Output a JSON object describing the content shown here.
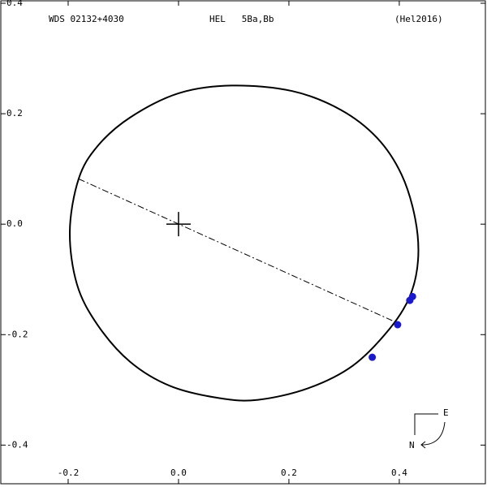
{
  "chart_data": {
    "type": "orbit",
    "header": [
      "WDS 02132+4030",
      "HEL   5Ba,Bb",
      "(Hel2016)"
    ],
    "compass": [
      "E",
      "N"
    ],
    "xlim": [
      -0.3235,
      0.556
    ],
    "ylim": [
      -0.47,
      0.4
    ],
    "xticks": [
      -0.2,
      {
        "value": 0,
        "label": "0.0"
      },
      0.2,
      0.4
    ],
    "yticks": [
      -0.4,
      -0.2,
      {
        "value": 0,
        "label": "0.0"
      },
      0.2,
      0.4
    ],
    "orbit": {
      "color": "#000000",
      "x": [
        -0.181,
        -0.197,
        -0.184,
        -0.147,
        -0.088,
        -0.015,
        0.074,
        0.144,
        0.235,
        0.316,
        0.382,
        0.419,
        0.434,
        0.429,
        0.404,
        0.36,
        0.294,
        0.206,
        0.096,
        0.0,
        -0.088,
        -0.147
      ],
      "y": [
        0.082,
        -0.013,
        -0.109,
        -0.182,
        -0.249,
        -0.293,
        -0.315,
        -0.318,
        -0.297,
        -0.256,
        -0.19,
        -0.131,
        -0.065,
        0.009,
        0.09,
        0.156,
        0.207,
        0.241,
        0.251,
        0.237,
        0.193,
        0.141
      ]
    },
    "observations": {
      "color": "#1a1acc",
      "x": [
        0.351,
        0.397,
        0.419,
        0.424
      ],
      "y": [
        -0.241,
        -0.182,
        -0.138,
        -0.131
      ]
    },
    "line_of_nodes": {
      "x": [
        -0.181,
        0.397
      ],
      "y": [
        0.082,
        -0.179
      ]
    },
    "primary": {
      "x": 0,
      "y": 0
    }
  }
}
